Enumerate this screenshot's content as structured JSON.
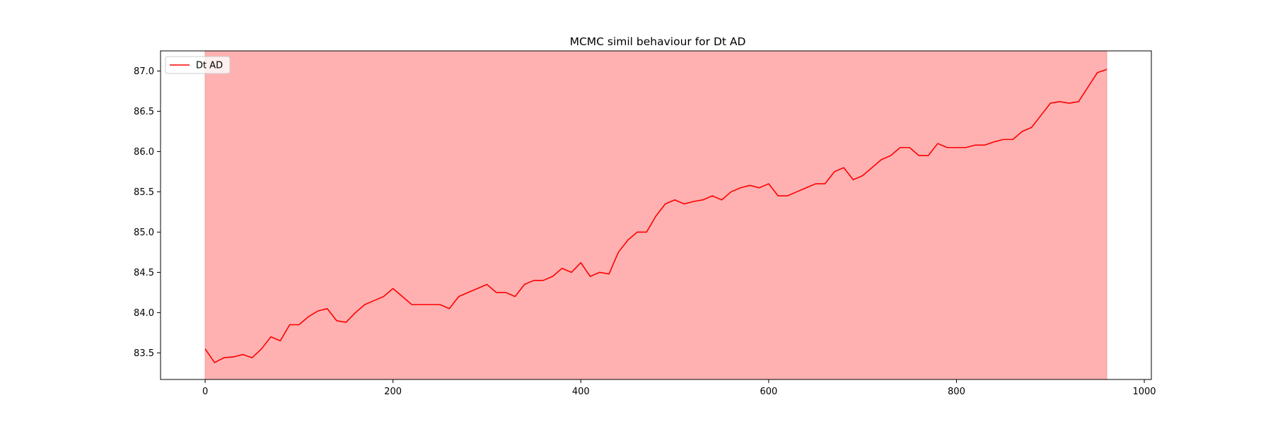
{
  "chart_data": {
    "type": "line",
    "title": "MCMC simil behaviour for Dt AD",
    "xlabel": "",
    "ylabel": "",
    "xlim": [
      -47.5,
      1007.5
    ],
    "ylim": [
      83.17,
      87.25
    ],
    "x_ticks": [
      0,
      200,
      400,
      600,
      800,
      1000
    ],
    "x_tick_labels": [
      "0",
      "200",
      "400",
      "600",
      "800",
      "1000"
    ],
    "y_ticks": [
      83.5,
      84.0,
      84.5,
      85.0,
      85.5,
      86.0,
      86.5,
      87.0
    ],
    "y_tick_labels": [
      "83.5",
      "84.0",
      "84.5",
      "85.0",
      "85.5",
      "86.0",
      "86.5",
      "87.0"
    ],
    "grid": false,
    "legend_position": "upper left",
    "shaded_region": {
      "x_start": 0,
      "x_end": 960,
      "color": "#ffb1b1"
    },
    "series": [
      {
        "name": "Dt AD",
        "color": "#ff0000",
        "x": [
          0,
          10,
          20,
          30,
          40,
          50,
          60,
          70,
          80,
          90,
          100,
          110,
          120,
          130,
          140,
          150,
          160,
          170,
          180,
          190,
          200,
          210,
          220,
          230,
          240,
          250,
          260,
          270,
          280,
          290,
          300,
          310,
          320,
          330,
          340,
          350,
          360,
          370,
          380,
          390,
          400,
          410,
          420,
          430,
          440,
          450,
          460,
          470,
          480,
          490,
          500,
          510,
          520,
          530,
          540,
          550,
          560,
          570,
          580,
          590,
          600,
          610,
          620,
          630,
          640,
          650,
          660,
          670,
          680,
          690,
          700,
          710,
          720,
          730,
          740,
          750,
          760,
          770,
          780,
          790,
          800,
          810,
          820,
          830,
          840,
          850,
          860,
          870,
          880,
          890,
          900,
          910,
          920,
          930,
          940,
          950,
          960
        ],
        "values": [
          83.55,
          83.38,
          83.44,
          83.45,
          83.48,
          83.44,
          83.55,
          83.7,
          83.65,
          83.85,
          83.85,
          83.95,
          84.02,
          84.05,
          83.9,
          83.88,
          84.0,
          84.1,
          84.15,
          84.2,
          84.3,
          84.2,
          84.1,
          84.1,
          84.1,
          84.1,
          84.05,
          84.2,
          84.25,
          84.3,
          84.35,
          84.25,
          84.25,
          84.2,
          84.35,
          84.4,
          84.4,
          84.45,
          84.55,
          84.5,
          84.62,
          84.45,
          84.5,
          84.48,
          84.75,
          84.9,
          85.0,
          85.0,
          85.2,
          85.35,
          85.4,
          85.35,
          85.38,
          85.4,
          85.45,
          85.4,
          85.5,
          85.55,
          85.58,
          85.55,
          85.6,
          85.45,
          85.45,
          85.5,
          85.55,
          85.6,
          85.6,
          85.75,
          85.8,
          85.65,
          85.7,
          85.8,
          85.9,
          85.95,
          86.05,
          86.05,
          85.95,
          85.95,
          86.1,
          86.05,
          86.05,
          86.05,
          86.08,
          86.08,
          86.12,
          86.15,
          86.15,
          86.25,
          86.3,
          86.45,
          86.6,
          86.62,
          86.6,
          86.62,
          86.8,
          86.98,
          87.02
        ]
      }
    ]
  }
}
